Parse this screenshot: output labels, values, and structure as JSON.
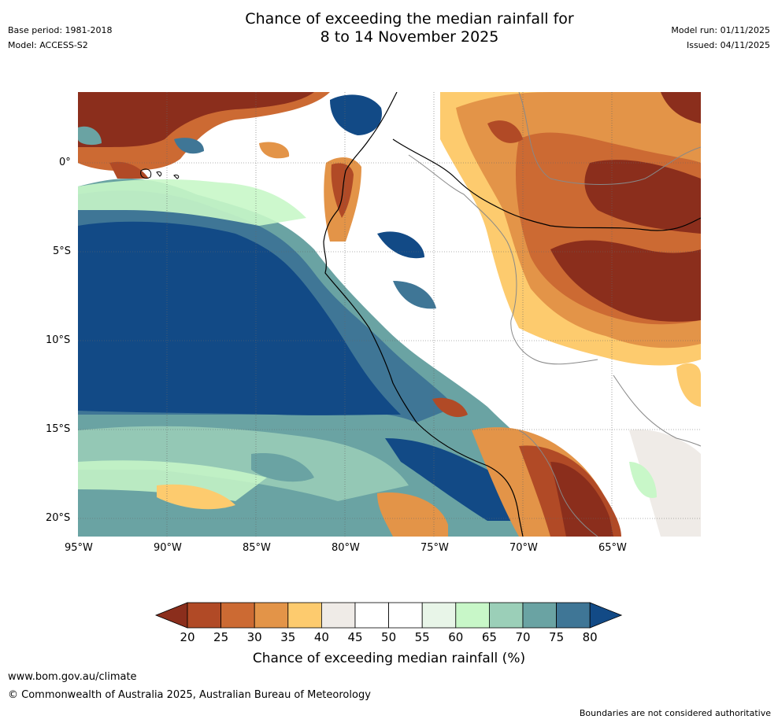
{
  "header": {
    "base_period": "Base period: 1981-2018",
    "model": "Model: ACCESS-S2",
    "title_line1": "Chance of exceeding the median rainfall for",
    "title_line2": "8 to 14 November 2025",
    "model_run": "Model run: 01/11/2025",
    "issued": "Issued: 04/11/2025"
  },
  "map": {
    "lat_labels": [
      "0°",
      "5°S",
      "10°S",
      "15°S",
      "20°S"
    ],
    "lon_labels": [
      "95°W",
      "90°W",
      "85°W",
      "80°W",
      "75°W",
      "70°W",
      "65°W"
    ]
  },
  "colorbar": {
    "ticks": [
      "20",
      "25",
      "30",
      "35",
      "40",
      "45",
      "50",
      "55",
      "60",
      "65",
      "70",
      "75",
      "80"
    ],
    "colors": [
      "#8b2e1c",
      "#b14a26",
      "#cc6a33",
      "#e39448",
      "#fdcb6e",
      "#efebe7",
      "#ffffff",
      "#ffffff",
      "#e8f5e8",
      "#c8f7c8",
      "#9bcfb8",
      "#6aa3a3",
      "#3f7696",
      "#124a86"
    ],
    "title": "Chance of exceeding median rainfall (%)"
  },
  "footer": {
    "url": "www.bom.gov.au/climate",
    "copyright": "© Commonwealth of Australia 2025, Australian Bureau of Meteorology",
    "disclaimer": "Boundaries are not considered authoritative"
  }
}
